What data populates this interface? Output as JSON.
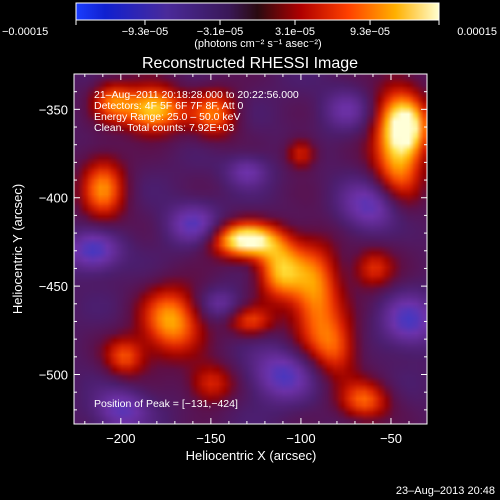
{
  "chart_data": {
    "type": "heatmap",
    "title": "Reconstructed RHESSI Image",
    "xlabel": "Heliocentric X (arcsec)",
    "ylabel": "Heliocentric Y (arcsec)",
    "xlim": [
      -226,
      -30
    ],
    "ylim": [
      -528,
      -330
    ],
    "x_ticks": [
      -200,
      -150,
      -100,
      -50
    ],
    "y_ticks": [
      -350,
      -400,
      -450,
      -500
    ],
    "x_tick_labels": [
      "−200",
      "−150",
      "−100",
      "−50"
    ],
    "y_tick_labels": [
      "−350",
      "−400",
      "−450",
      "−500"
    ],
    "colorbar": {
      "range": [
        -0.00015,
        0.00015
      ],
      "ticks": [
        -0.00015,
        -9.3e-05,
        -3.1e-05,
        3.1e-05,
        9.3e-05,
        0.00015
      ],
      "tick_labels": [
        "−0.00015",
        "−9.3e−05",
        "−3.1e−05",
        "3.1e−05",
        "9.3e−05",
        "0.00015"
      ],
      "units_label": "(photons cm⁻² s⁻¹ asec⁻²)"
    },
    "annotations": [
      "21–Aug–2011 20:18:28.000 to 20:22:56.000",
      "Detectors: 4F 5F 6F 7F 8F, Att 0",
      "Energy Range: 25.0 – 50.0 keV",
      "Clean.  Total counts: 7.92E+03"
    ],
    "peak_label": "Position of Peak = [−131,−424]",
    "peak": [
      -131,
      -424
    ],
    "blobs": [
      {
        "x": -131,
        "y": -424,
        "sx": 13,
        "sy": 7,
        "amp": 1.0
      },
      {
        "x": -112,
        "y": -441,
        "sx": 9,
        "sy": 12,
        "amp": 0.7
      },
      {
        "x": -92,
        "y": -455,
        "sx": 10,
        "sy": 22,
        "amp": 0.65
      },
      {
        "x": -80,
        "y": -485,
        "sx": 9,
        "sy": 12,
        "amp": 0.45
      },
      {
        "x": -182,
        "y": -350,
        "sx": 12,
        "sy": 9,
        "amp": 0.85
      },
      {
        "x": -148,
        "y": -352,
        "sx": 9,
        "sy": 10,
        "amp": 0.55
      },
      {
        "x": -205,
        "y": -345,
        "sx": 8,
        "sy": 8,
        "amp": 0.5
      },
      {
        "x": -46,
        "y": -370,
        "sx": 10,
        "sy": 24,
        "amp": 0.8
      },
      {
        "x": -40,
        "y": -360,
        "sx": 8,
        "sy": 10,
        "amp": 0.5
      },
      {
        "x": -100,
        "y": -375,
        "sx": 6,
        "sy": 6,
        "amp": 0.45
      },
      {
        "x": -172,
        "y": -470,
        "sx": 12,
        "sy": 14,
        "amp": 0.7
      },
      {
        "x": -198,
        "y": -490,
        "sx": 8,
        "sy": 8,
        "amp": 0.5
      },
      {
        "x": -150,
        "y": -505,
        "sx": 9,
        "sy": 8,
        "amp": 0.45
      },
      {
        "x": -128,
        "y": -470,
        "sx": 9,
        "sy": 6,
        "amp": 0.45
      },
      {
        "x": -210,
        "y": -395,
        "sx": 9,
        "sy": 14,
        "amp": 0.6
      },
      {
        "x": -60,
        "y": -440,
        "sx": 8,
        "sy": 8,
        "amp": 0.45
      },
      {
        "x": -65,
        "y": -515,
        "sx": 10,
        "sy": 8,
        "amp": 0.55
      },
      {
        "x": -130,
        "y": -385,
        "sx": 8,
        "sy": 6,
        "amp": -0.35
      },
      {
        "x": -215,
        "y": -430,
        "sx": 10,
        "sy": 8,
        "amp": -0.55
      },
      {
        "x": -160,
        "y": -415,
        "sx": 10,
        "sy": 8,
        "amp": -0.45
      },
      {
        "x": -60,
        "y": -405,
        "sx": 12,
        "sy": 10,
        "amp": -0.5
      },
      {
        "x": -110,
        "y": -500,
        "sx": 12,
        "sy": 10,
        "amp": -0.5
      },
      {
        "x": -200,
        "y": -520,
        "sx": 10,
        "sy": 8,
        "amp": -0.45
      },
      {
        "x": -75,
        "y": -350,
        "sx": 9,
        "sy": 8,
        "amp": -0.3
      },
      {
        "x": -40,
        "y": -470,
        "sx": 10,
        "sy": 10,
        "amp": -0.5
      },
      {
        "x": -145,
        "y": -460,
        "sx": 8,
        "sy": 6,
        "amp": -0.3
      }
    ]
  },
  "footer": {
    "timestamp": "23–Aug–2013 20:48"
  }
}
